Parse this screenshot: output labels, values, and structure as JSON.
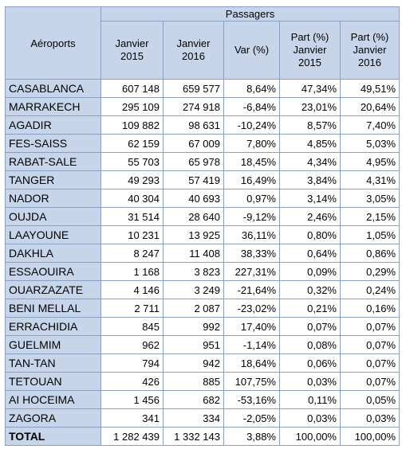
{
  "header": {
    "airports_label": "Aéroports",
    "group_label": "Passagers",
    "columns": [
      "Janvier 2015",
      "Janvier 2016",
      "Var (%)",
      "Part (%) Janvier 2015",
      "Part (%) Janvier 2016"
    ]
  },
  "rows": [
    {
      "airport": "CASABLANCA",
      "jan2015": "607 148",
      "jan2016": "659 577",
      "var": "8,64%",
      "share2015": "47,34%",
      "share2016": "49,51%"
    },
    {
      "airport": "MARRAKECH",
      "jan2015": "295 109",
      "jan2016": "274 918",
      "var": "-6,84%",
      "share2015": "23,01%",
      "share2016": "20,64%"
    },
    {
      "airport": "AGADIR",
      "jan2015": "109 882",
      "jan2016": "98 631",
      "var": "-10,24%",
      "share2015": "8,57%",
      "share2016": "7,40%"
    },
    {
      "airport": "FES-SAISS",
      "jan2015": "62 159",
      "jan2016": "67 009",
      "var": "7,80%",
      "share2015": "4,85%",
      "share2016": "5,03%"
    },
    {
      "airport": "RABAT-SALE",
      "jan2015": "55 703",
      "jan2016": "65 978",
      "var": "18,45%",
      "share2015": "4,34%",
      "share2016": "4,95%"
    },
    {
      "airport": "TANGER",
      "jan2015": "49 293",
      "jan2016": "57 419",
      "var": "16,49%",
      "share2015": "3,84%",
      "share2016": "4,31%"
    },
    {
      "airport": "NADOR",
      "jan2015": "40 304",
      "jan2016": "40 693",
      "var": "0,97%",
      "share2015": "3,14%",
      "share2016": "3,05%"
    },
    {
      "airport": "OUJDA",
      "jan2015": "31 514",
      "jan2016": "28 640",
      "var": "-9,12%",
      "share2015": "2,46%",
      "share2016": "2,15%"
    },
    {
      "airport": "LAAYOUNE",
      "jan2015": "10 231",
      "jan2016": "13 925",
      "var": "36,11%",
      "share2015": "0,80%",
      "share2016": "1,05%"
    },
    {
      "airport": "DAKHLA",
      "jan2015": "8 247",
      "jan2016": "11 408",
      "var": "38,33%",
      "share2015": "0,64%",
      "share2016": "0,86%"
    },
    {
      "airport": "ESSAOUIRA",
      "jan2015": "1 168",
      "jan2016": "3 823",
      "var": "227,31%",
      "share2015": "0,09%",
      "share2016": "0,29%"
    },
    {
      "airport": "OUARZAZATE",
      "jan2015": "4 146",
      "jan2016": "3 249",
      "var": "-21,64%",
      "share2015": "0,32%",
      "share2016": "0,24%"
    },
    {
      "airport": "BENI MELLAL",
      "jan2015": "2 711",
      "jan2016": "2 087",
      "var": "-23,02%",
      "share2015": "0,21%",
      "share2016": "0,16%"
    },
    {
      "airport": "ERRACHIDIA",
      "jan2015": "845",
      "jan2016": "992",
      "var": "17,40%",
      "share2015": "0,07%",
      "share2016": "0,07%"
    },
    {
      "airport": "GUELMIM",
      "jan2015": "962",
      "jan2016": "951",
      "var": "-1,14%",
      "share2015": "0,08%",
      "share2016": "0,07%"
    },
    {
      "airport": "TAN-TAN",
      "jan2015": "794",
      "jan2016": "942",
      "var": "18,64%",
      "share2015": "0,06%",
      "share2016": "0,07%"
    },
    {
      "airport": "TETOUAN",
      "jan2015": "426",
      "jan2016": "885",
      "var": "107,75%",
      "share2015": "0,03%",
      "share2016": "0,07%"
    },
    {
      "airport": "AI HOCEIMA",
      "jan2015": "1 456",
      "jan2016": "682",
      "var": "-53,16%",
      "share2015": "0,11%",
      "share2016": "0,05%"
    },
    {
      "airport": "ZAGORA",
      "jan2015": "341",
      "jan2016": "334",
      "var": "-2,05%",
      "share2015": "0,03%",
      "share2016": "0,03%"
    }
  ],
  "total": {
    "airport": "TOTAL",
    "jan2015": "1 282 439",
    "jan2016": "1 332 143",
    "var": "3,88%",
    "share2015": "100,00%",
    "share2016": "100,00%"
  },
  "colors": {
    "header_fill": "#c6d5ea",
    "border": "#8a9fc0"
  }
}
